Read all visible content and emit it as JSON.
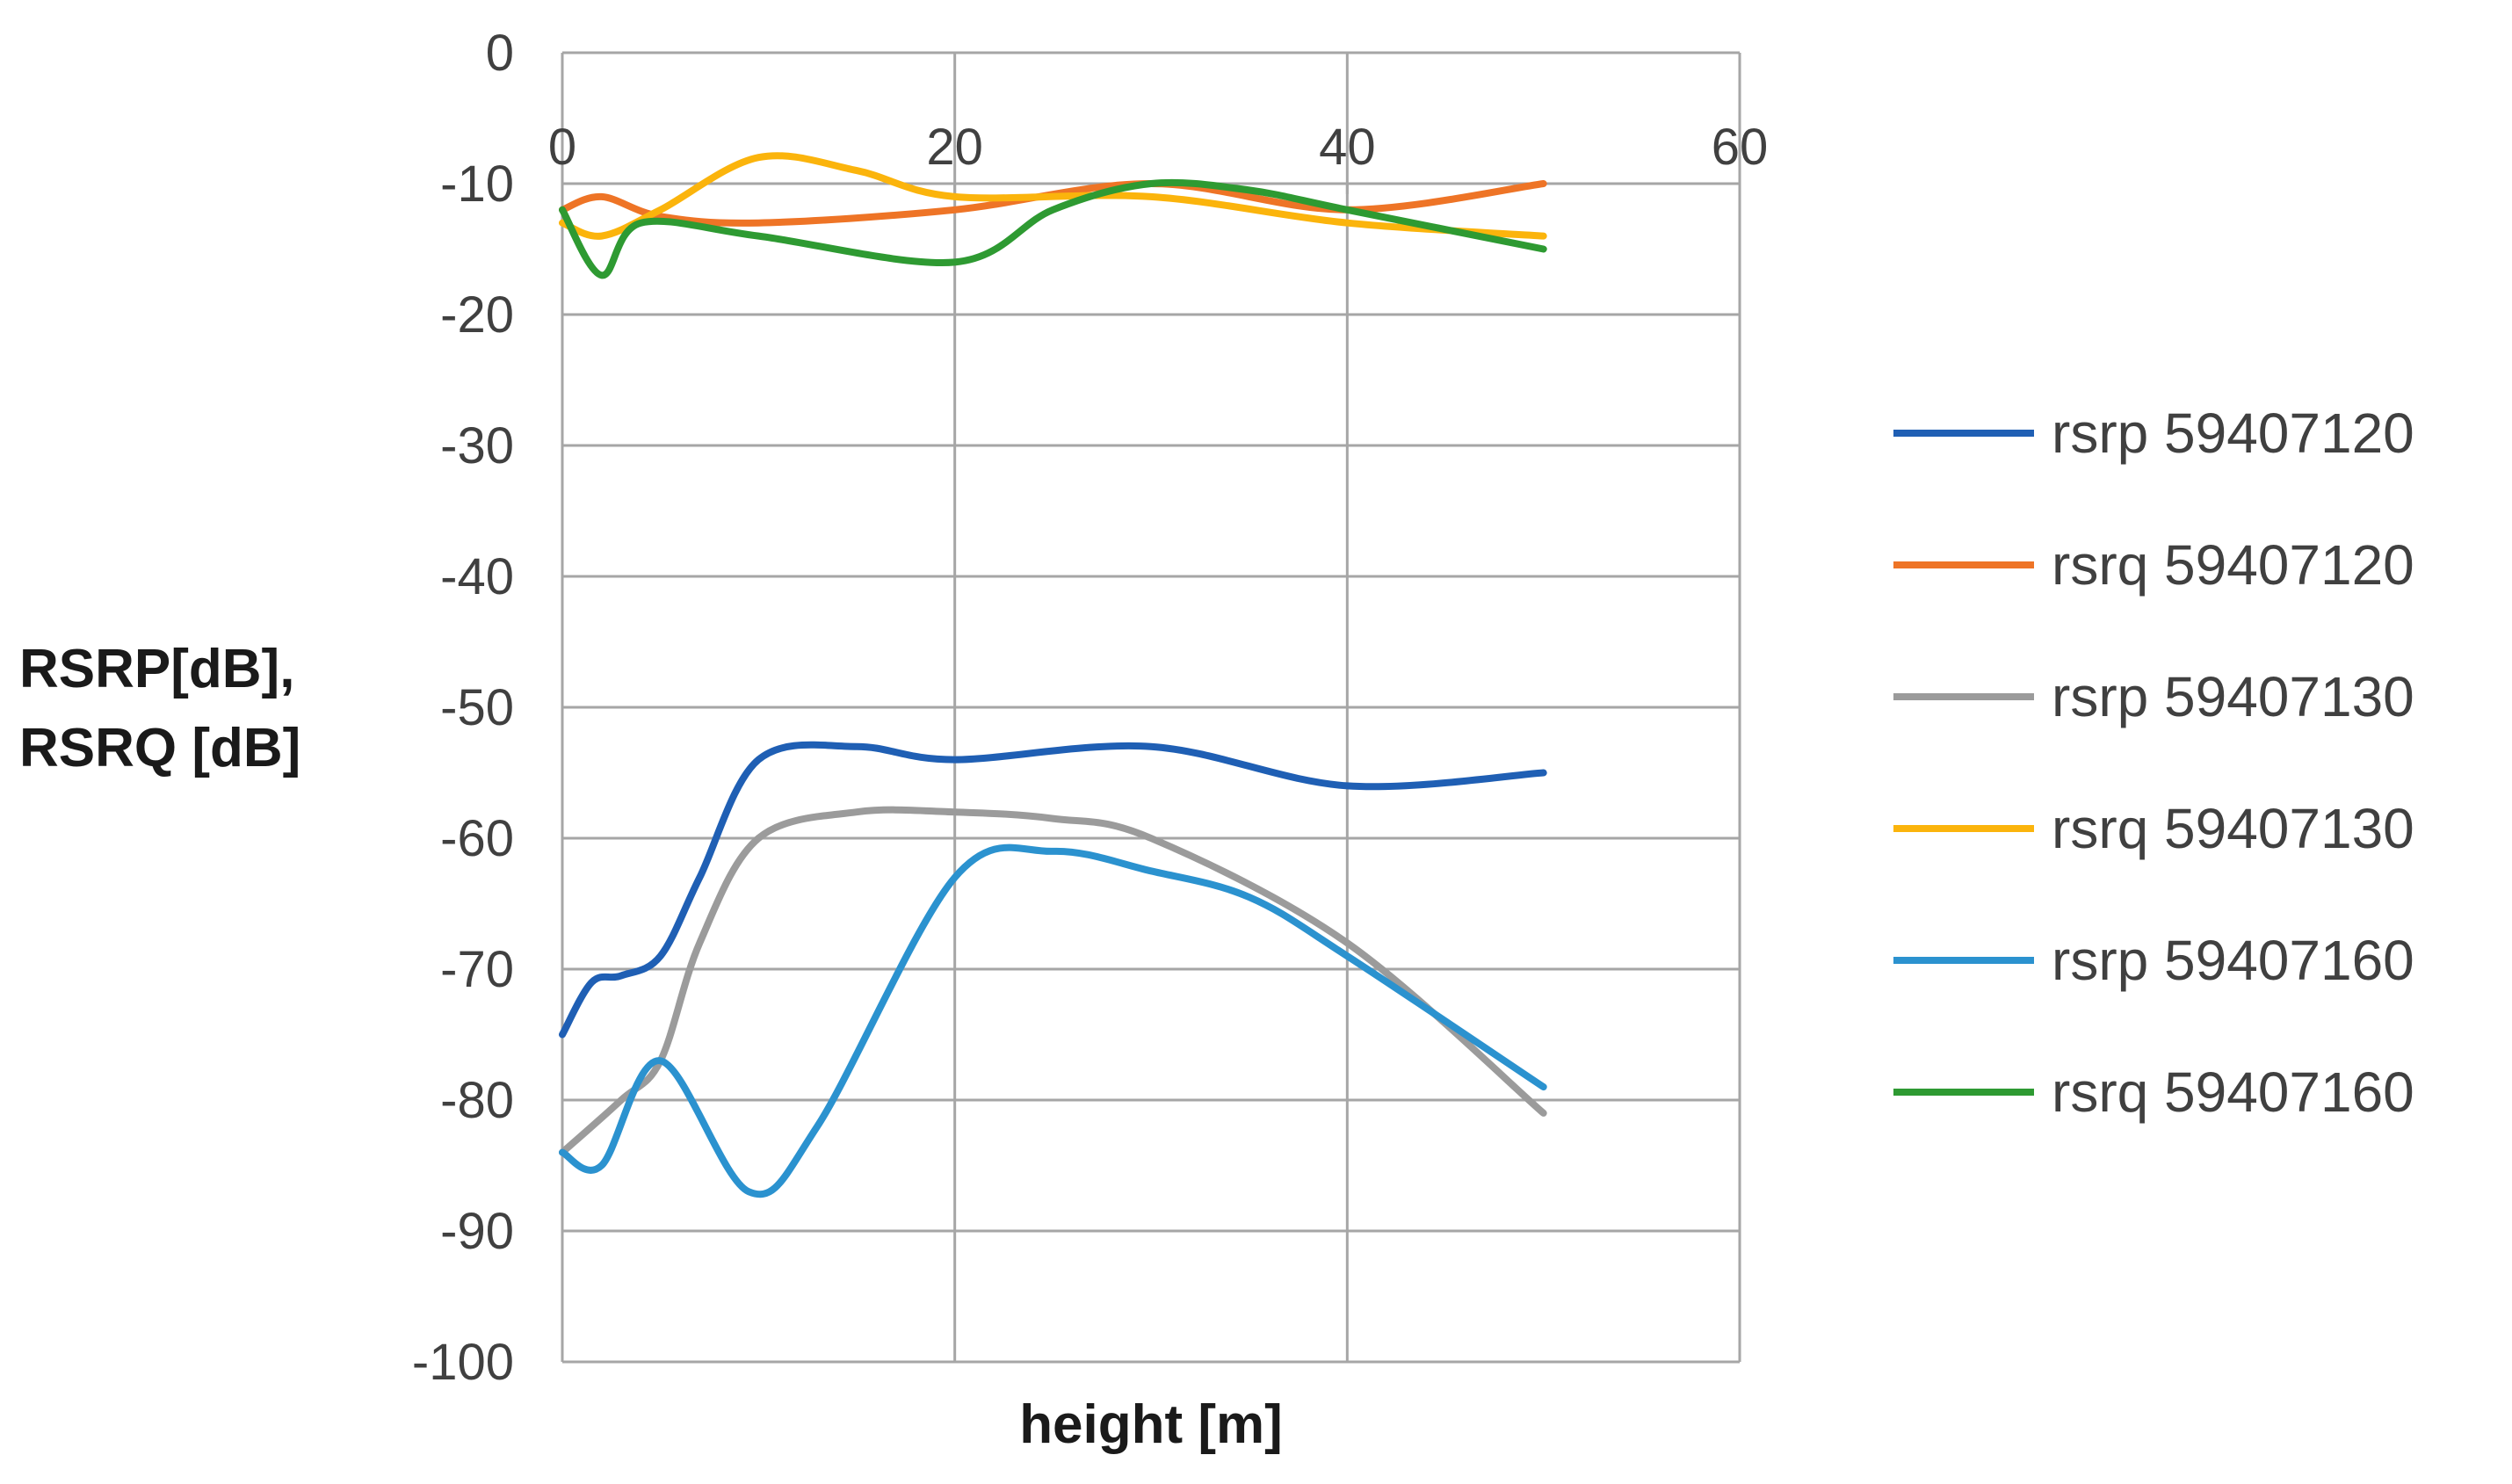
{
  "chart_data": {
    "type": "line",
    "title": "",
    "xlabel": "height [m]",
    "ylabel": [
      "RSRP[dB],",
      "RSRQ [dB]"
    ],
    "xlim": [
      0,
      60
    ],
    "ylim": [
      -100,
      0
    ],
    "xticks": [
      0,
      20,
      40,
      60
    ],
    "yticks": [
      0,
      -10,
      -20,
      -30,
      -40,
      -50,
      -60,
      -70,
      -80,
      -90,
      -100
    ],
    "x_axis_crosses_at": -10,
    "grid": true,
    "legend_position": "right",
    "series": [
      {
        "name": "rsrp 59407120",
        "color": "#1f5fb4",
        "x": [
          0,
          1.5,
          3,
          5,
          7,
          10,
          15,
          20,
          30,
          40,
          50
        ],
        "y": [
          -75,
          -71,
          -70.5,
          -69,
          -63,
          -54,
          -53,
          -54,
          -53,
          -56,
          -55
        ]
      },
      {
        "name": "rsrq 59407120",
        "color": "#ee7426",
        "x": [
          0,
          2,
          5,
          10,
          20,
          30,
          40,
          50
        ],
        "y": [
          -12,
          -11,
          -12.5,
          -13,
          -12,
          -10,
          -12,
          -10
        ]
      },
      {
        "name": "rsrp 59407130",
        "color": "#9b9b9b",
        "x": [
          0,
          3,
          5,
          7,
          10,
          15,
          20,
          25,
          30,
          40,
          50
        ],
        "y": [
          -84,
          -80,
          -77,
          -68,
          -60,
          -58,
          -58,
          -58.5,
          -60,
          -68,
          -81
        ]
      },
      {
        "name": "rsrq 59407130",
        "color": "#fbb40c",
        "x": [
          0,
          2,
          5,
          10,
          15,
          20,
          30,
          40,
          50
        ],
        "y": [
          -13,
          -14,
          -12,
          -8,
          -9,
          -11,
          -11,
          -13,
          -14
        ]
      },
      {
        "name": "rsrp 59407160",
        "color": "#2b92cf",
        "x": [
          0,
          2,
          5,
          9.5,
          13,
          20,
          25,
          30,
          35,
          40,
          50
        ],
        "y": [
          -84,
          -85,
          -77,
          -87,
          -82,
          -63,
          -61,
          -62.5,
          -64.5,
          -69,
          -79
        ]
      },
      {
        "name": "rsrq 59407160",
        "color": "#2e9a32",
        "x": [
          0,
          2,
          4,
          10,
          20,
          25,
          30,
          35,
          40,
          50
        ],
        "y": [
          -12,
          -17,
          -13,
          -14,
          -16,
          -12,
          -10,
          -10.5,
          -12,
          -15
        ]
      }
    ]
  }
}
